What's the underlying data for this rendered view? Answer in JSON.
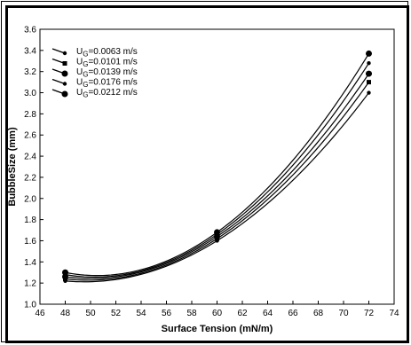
{
  "chart_data": {
    "type": "line",
    "title": "",
    "xlabel": "Surface Tension (mN/m)",
    "ylabel": "BubbleSize (mm)",
    "xlim": [
      46,
      74
    ],
    "ylim": [
      1.0,
      3.6
    ],
    "xticks": [
      46,
      48,
      50,
      52,
      54,
      56,
      58,
      60,
      62,
      64,
      66,
      68,
      70,
      72,
      74
    ],
    "yticks": [
      1.0,
      1.2,
      1.4,
      1.6,
      1.8,
      2.0,
      2.2,
      2.4,
      2.6,
      2.8,
      3.0,
      3.2,
      3.4,
      3.6
    ],
    "grid": false,
    "legend_position": "top-left",
    "legend_prefix": "U",
    "legend_subscript": "G",
    "x_points": [
      48,
      60,
      72
    ],
    "series": [
      {
        "name": "=0.0063 m/s",
        "marker": "small-circle",
        "values": [
          1.22,
          1.6,
          3.0
        ]
      },
      {
        "name": "=0.0101 m/s",
        "marker": "square",
        "values": [
          1.24,
          1.62,
          3.1
        ]
      },
      {
        "name": "=0.0139 m/s",
        "marker": "large-circle",
        "values": [
          1.26,
          1.64,
          3.18
        ]
      },
      {
        "name": "=0.0176 m/s",
        "marker": "small-circle",
        "values": [
          1.28,
          1.66,
          3.28
        ]
      },
      {
        "name": "=0.0212 m/s",
        "marker": "large-circle",
        "values": [
          1.3,
          1.68,
          3.37
        ]
      }
    ]
  }
}
